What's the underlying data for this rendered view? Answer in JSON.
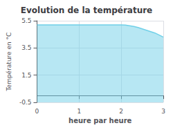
{
  "chart_data": {
    "type": "line",
    "title": "Evolution de la température",
    "xlabel": "heure par heure",
    "ylabel": "Température en °C",
    "x": [
      0,
      0.05,
      0.1,
      0.2,
      0.3,
      0.5,
      0.8,
      1.0,
      1.2,
      1.5,
      1.8,
      2.0,
      2.1,
      2.2,
      2.3,
      2.4,
      2.5,
      2.6,
      2.7,
      2.8,
      2.9,
      3.0
    ],
    "values": [
      5.2,
      5.2,
      5.2,
      5.2,
      5.2,
      5.2,
      5.2,
      5.2,
      5.2,
      5.2,
      5.2,
      5.2,
      5.18,
      5.13,
      5.08,
      5.0,
      4.9,
      4.8,
      4.7,
      4.6,
      4.45,
      4.3
    ],
    "color": "#70d0e8",
    "xlim": [
      0,
      3
    ],
    "xticks": [
      0,
      1,
      2,
      3
    ],
    "ylim": [
      -0.5,
      5.5
    ],
    "yticks": [
      -0.5,
      1.5,
      3.5,
      5.5
    ],
    "grid": true
  }
}
